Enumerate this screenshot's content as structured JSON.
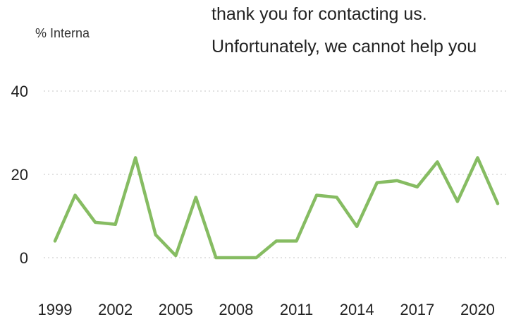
{
  "overlay": {
    "line1": "thank you for contacting us.",
    "line2": "Unfortunately, we cannot help you"
  },
  "chart_data": {
    "type": "line",
    "title": "",
    "ylabel": "% Interna",
    "xlabel": "",
    "x": [
      1999,
      2000,
      2001,
      2002,
      2003,
      2004,
      2005,
      2006,
      2007,
      2008,
      2009,
      2010,
      2011,
      2012,
      2013,
      2014,
      2015,
      2016,
      2017,
      2018,
      2019,
      2020,
      2021
    ],
    "series": [
      {
        "values": [
          4,
          15,
          8.5,
          8,
          24,
          5.5,
          0.5,
          14.5,
          0,
          0,
          0,
          4,
          4,
          15,
          14.5,
          7.5,
          18,
          18.5,
          17,
          23,
          13.5,
          24,
          13
        ],
        "color": "#86bc62"
      }
    ],
    "xticks": [
      "1999",
      "2002",
      "2005",
      "2008",
      "2011",
      "2014",
      "2017",
      "2020"
    ],
    "yticks": [
      "0",
      "20",
      "40"
    ],
    "ylim": [
      0,
      40
    ],
    "grid": true,
    "legend": "none"
  }
}
